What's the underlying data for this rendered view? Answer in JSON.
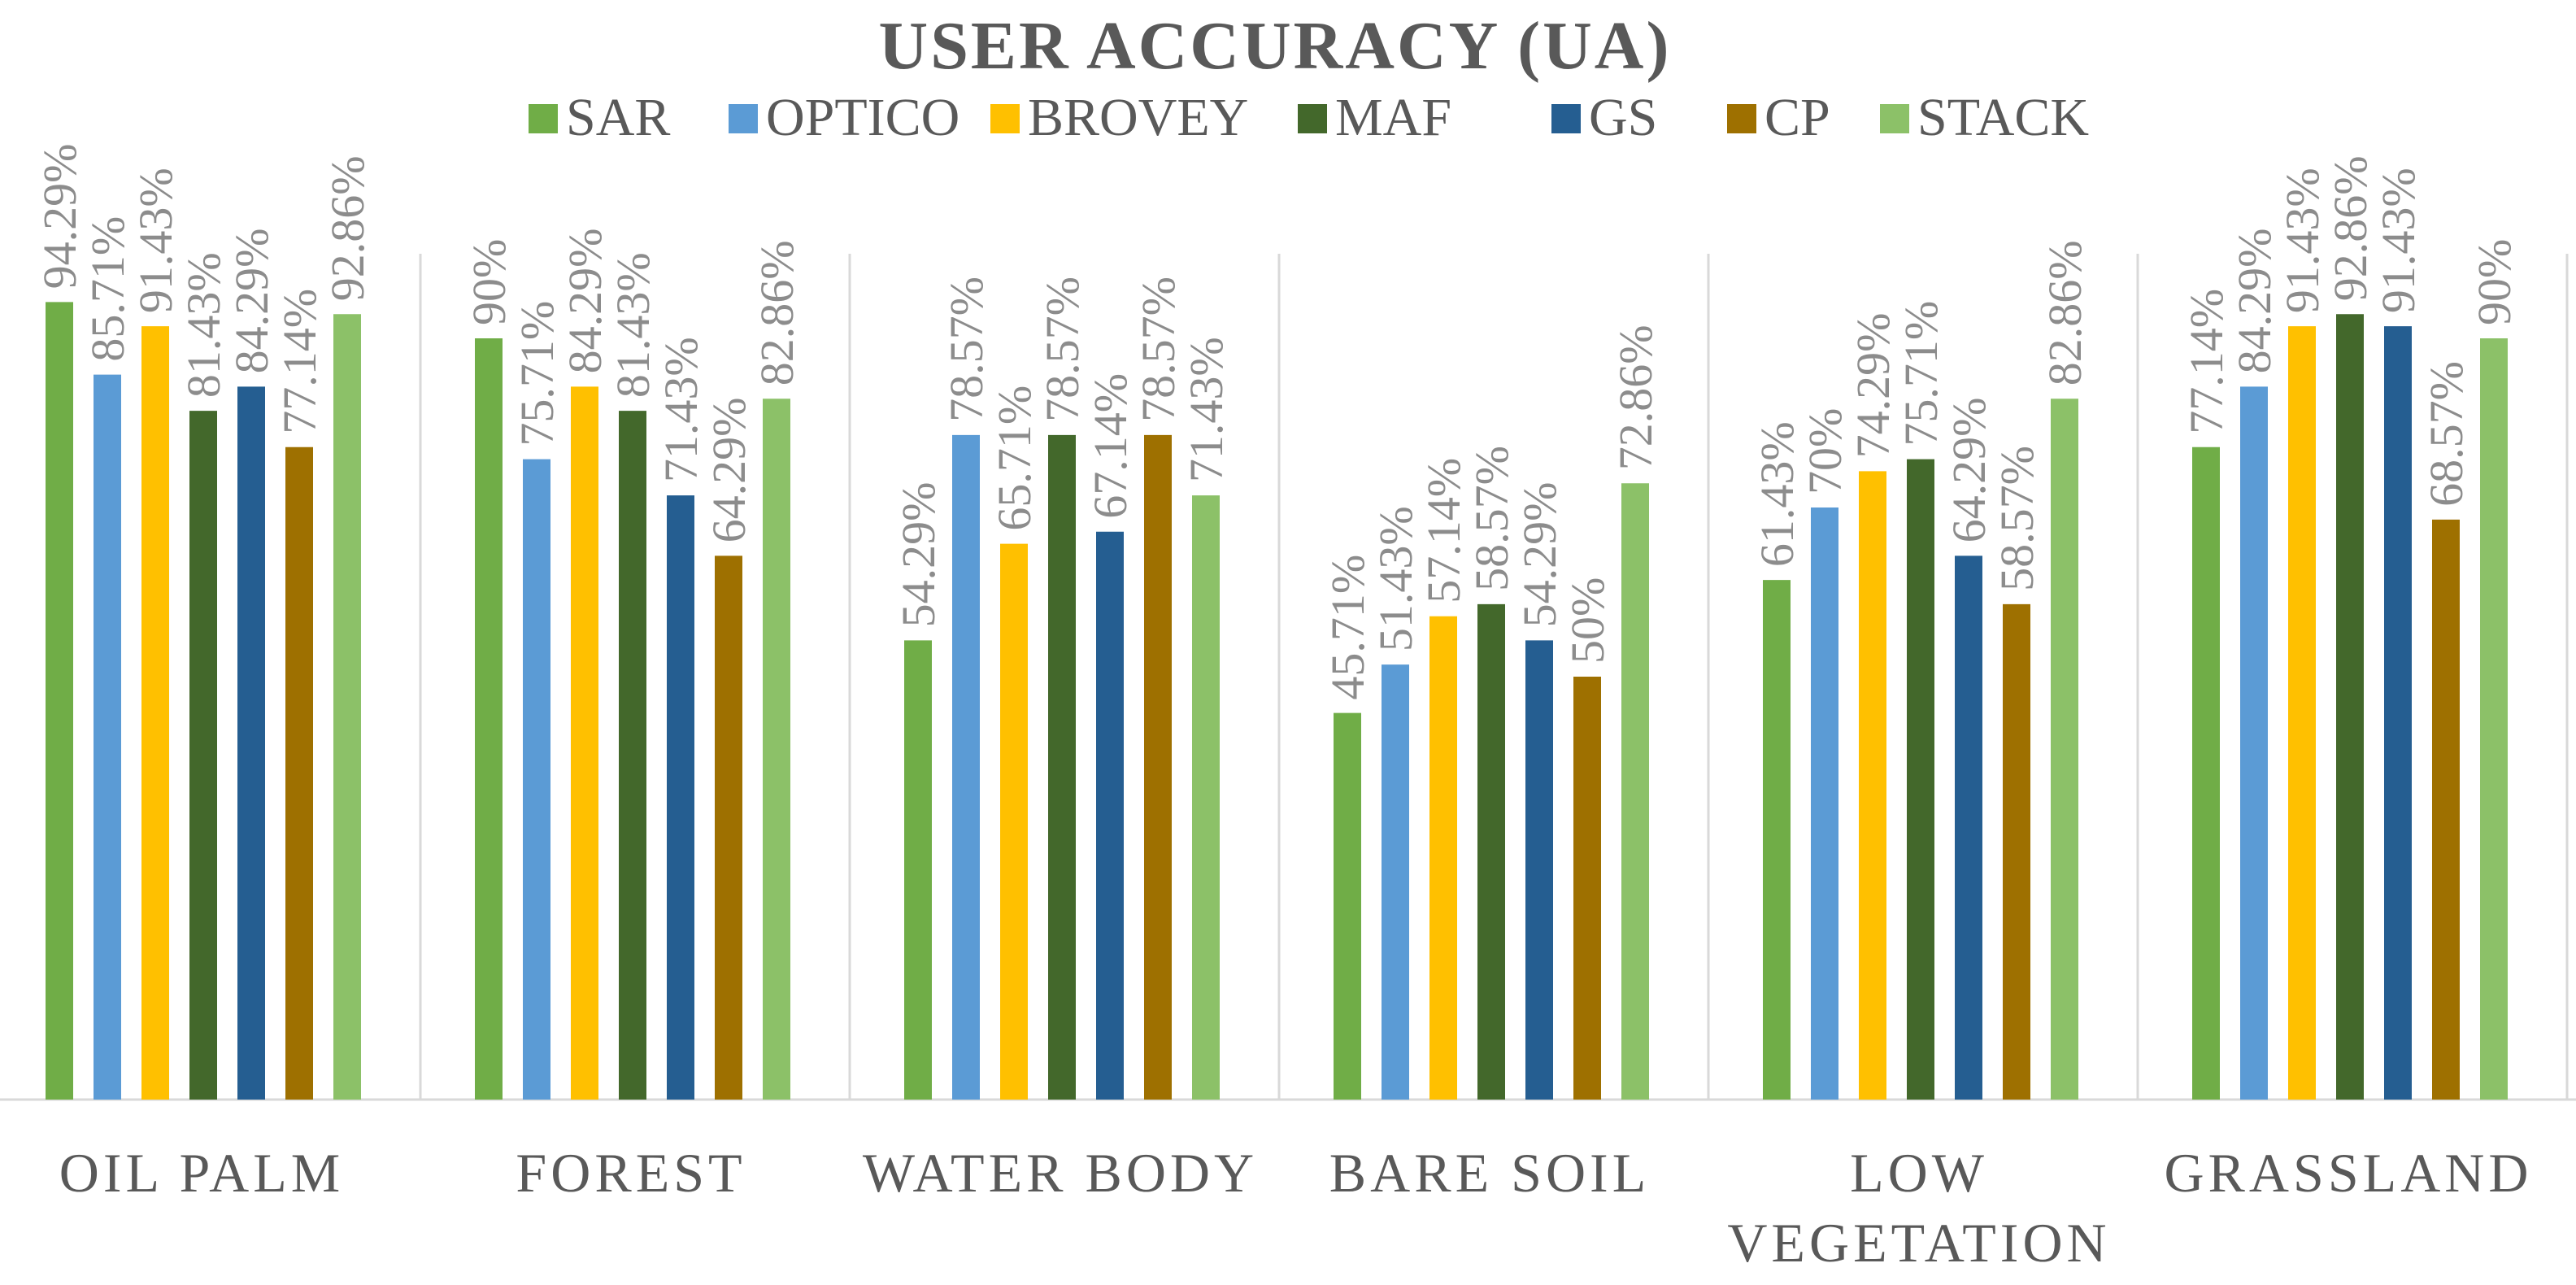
{
  "chart_data": {
    "type": "bar",
    "title": "USER ACCURACY (UA)",
    "xlabel": "",
    "ylabel": "",
    "ylim": [
      0,
      100
    ],
    "grid": false,
    "legend_position": "top",
    "categories": [
      [
        "OIL PALM"
      ],
      [
        "FOREST"
      ],
      [
        "WATER BODY"
      ],
      [
        "BARE SOIL"
      ],
      [
        "LOW",
        "VEGETATION"
      ],
      [
        "GRASSLAND"
      ]
    ],
    "series": [
      {
        "name": "SAR",
        "color": "#70AD47",
        "values": [
          94.29,
          90.0,
          54.29,
          45.71,
          61.43,
          77.14
        ],
        "labels": [
          "94.29%",
          "90%",
          "54.29%",
          "45.71%",
          "61.43%",
          "77.14%"
        ]
      },
      {
        "name": "OPTICO",
        "color": "#5B9BD5",
        "values": [
          85.71,
          75.71,
          78.57,
          51.43,
          70.0,
          84.29
        ],
        "labels": [
          "85.71%",
          "75.71%",
          "78.57%",
          "51.43%",
          "70%",
          "84.29%"
        ]
      },
      {
        "name": "BROVEY",
        "color": "#FFC000",
        "values": [
          91.43,
          84.29,
          65.71,
          57.14,
          74.29,
          91.43
        ],
        "labels": [
          "91.43%",
          "84.29%",
          "65.71%",
          "57.14%",
          "74.29%",
          "91.43%"
        ]
      },
      {
        "name": "MAF",
        "color": "#43682B",
        "values": [
          81.43,
          81.43,
          78.57,
          58.57,
          75.71,
          92.86
        ],
        "labels": [
          "81.43%",
          "81.43%",
          "78.57%",
          "58.57%",
          "75.71%",
          "92.86%"
        ]
      },
      {
        "name": "GS",
        "color": "#255E91",
        "values": [
          84.29,
          71.43,
          67.14,
          54.29,
          64.29,
          91.43
        ],
        "labels": [
          "84.29%",
          "71.43%",
          "67.14%",
          "54.29%",
          "64.29%",
          "91.43%"
        ]
      },
      {
        "name": "CP",
        "color": "#9E7000",
        "values": [
          77.14,
          64.29,
          78.57,
          50.0,
          58.57,
          68.57
        ],
        "labels": [
          "77.14%",
          "64.29%",
          "78.57%",
          "50%",
          "58.57%",
          "68.57%"
        ]
      },
      {
        "name": "STACK",
        "color": "#8CC168",
        "values": [
          92.86,
          82.86,
          71.43,
          72.86,
          82.86,
          90.0
        ],
        "labels": [
          "92.86%",
          "82.86%",
          "71.43%",
          "72.86%",
          "82.86%",
          "90%"
        ]
      }
    ]
  }
}
